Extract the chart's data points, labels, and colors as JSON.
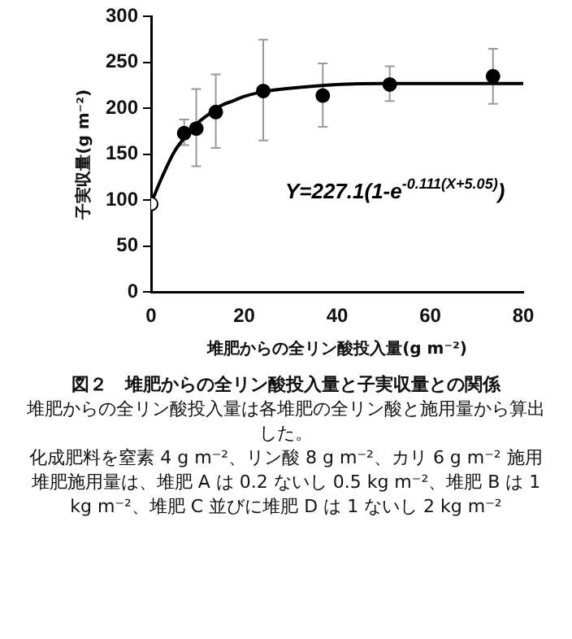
{
  "chart_data": {
    "type": "scatter",
    "xlabel": "堆肥からの全リン酸投入量(g m⁻²)",
    "ylabel": "子実収量(g m⁻²)",
    "title": "図２　堆肥からの全リン酸投入量と子実収量との関係",
    "annotations": [
      "Y=227.1(1-e$^{-0.111(X+5.05)}$)",
      "堆肥からの全リン酸投入量は各堆肥の全リン酸と施用量から算出した。",
      "化成肥料を窒素 4 g m⁻²、リン酸 8 g m⁻²、カリ 6 g m⁻² 施用",
      "堆肥施用量は、堆肥 A は 0.2 ないし 0.5 kg m⁻²、堆肥 B は 1 kg m⁻²、堆肥 C 並びに堆肥 D は 1 ないし 2 kg m⁻²"
    ],
    "xlim": [
      0,
      80
    ],
    "xticks": [
      0,
      20,
      40,
      60,
      80
    ],
    "ylim": [
      0,
      300
    ],
    "yticks": [
      0,
      50,
      100,
      150,
      200,
      250,
      300
    ],
    "grid": false,
    "legend": false,
    "marker": "circle",
    "series": [
      {
        "type": "line",
        "color": "#000000",
        "marker": "none",
        "line_style": "solid",
        "x": [
          0,
          2.5,
          5,
          7.5,
          10,
          12.5,
          15,
          17.5,
          20,
          25,
          30,
          40,
          50,
          60,
          80
        ],
        "values": [
          97,
          127,
          153,
          170,
          184,
          194,
          203,
          208,
          213,
          219,
          222,
          226,
          227,
          227,
          227
        ]
      },
      {
        "color": "#000000",
        "x": [
          7.1,
          9.7,
          13.9,
          24.1,
          36.9,
          51.3,
          73.5
        ],
        "values": [
          173,
          178,
          196,
          219,
          214,
          226,
          235
        ],
        "errors": [
          [
            160,
            188
          ],
          [
            137,
            221
          ],
          [
            157,
            237
          ],
          [
            165,
            275
          ],
          [
            180,
            249
          ],
          [
            208,
            246
          ],
          [
            205,
            265
          ]
        ]
      },
      {
        "color": "#ffffff",
        "x": [
          0
        ],
        "values": [
          96
        ]
      }
    ]
  }
}
